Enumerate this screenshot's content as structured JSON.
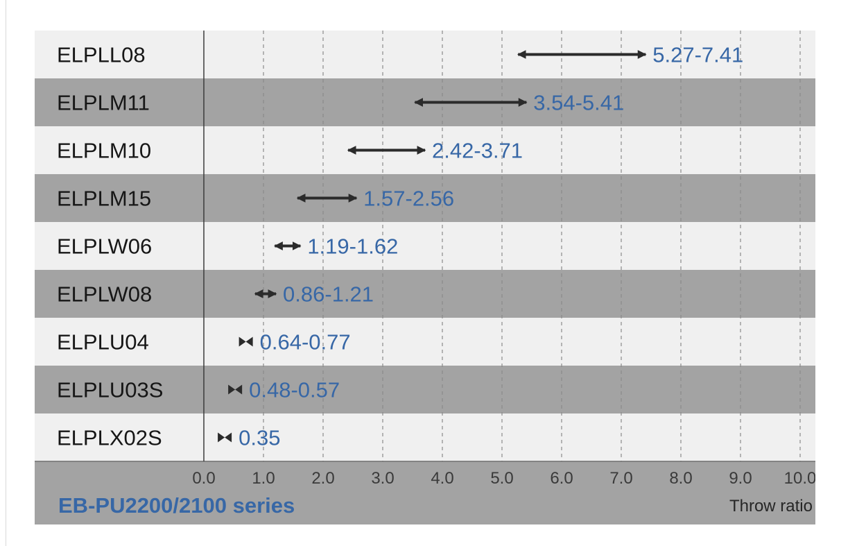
{
  "chart_data": {
    "type": "range",
    "series_label": "EB-PU2200/2100 series",
    "xlabel": "Throw ratio",
    "xlim": [
      0.0,
      10.0
    ],
    "x_ticks": [
      "0.0",
      "1.0",
      "2.0",
      "3.0",
      "4.0",
      "5.0",
      "6.0",
      "7.0",
      "8.0",
      "9.0",
      "10.0"
    ],
    "grid": "vertical dashed",
    "rows": [
      {
        "name": "ELPLL08",
        "min": 5.27,
        "max": 7.41,
        "label": "5.27-7.41"
      },
      {
        "name": "ELPLM11",
        "min": 3.54,
        "max": 5.41,
        "label": "3.54-5.41"
      },
      {
        "name": "ELPLM10",
        "min": 2.42,
        "max": 3.71,
        "label": "2.42-3.71"
      },
      {
        "name": "ELPLM15",
        "min": 1.57,
        "max": 2.56,
        "label": "1.57-2.56"
      },
      {
        "name": "ELPLW06",
        "min": 1.19,
        "max": 1.62,
        "label": "1.19-1.62"
      },
      {
        "name": "ELPLW08",
        "min": 0.86,
        "max": 1.21,
        "label": "0.86-1.21"
      },
      {
        "name": "ELPLU04",
        "min": 0.64,
        "max": 0.77,
        "label": "0.64-0.77"
      },
      {
        "name": "ELPLU03S",
        "min": 0.48,
        "max": 0.57,
        "label": "0.48-0.57"
      },
      {
        "name": "ELPLX02S",
        "min": 0.35,
        "max": 0.35,
        "label": "0.35"
      }
    ]
  },
  "colors": {
    "row_light": "#f0f0f0",
    "row_dark": "#a3a3a3",
    "footer": "#a3a3a3",
    "arrow": "#2b2b2b",
    "value_text": "#3767a6",
    "grid": "#8a8a8a"
  }
}
